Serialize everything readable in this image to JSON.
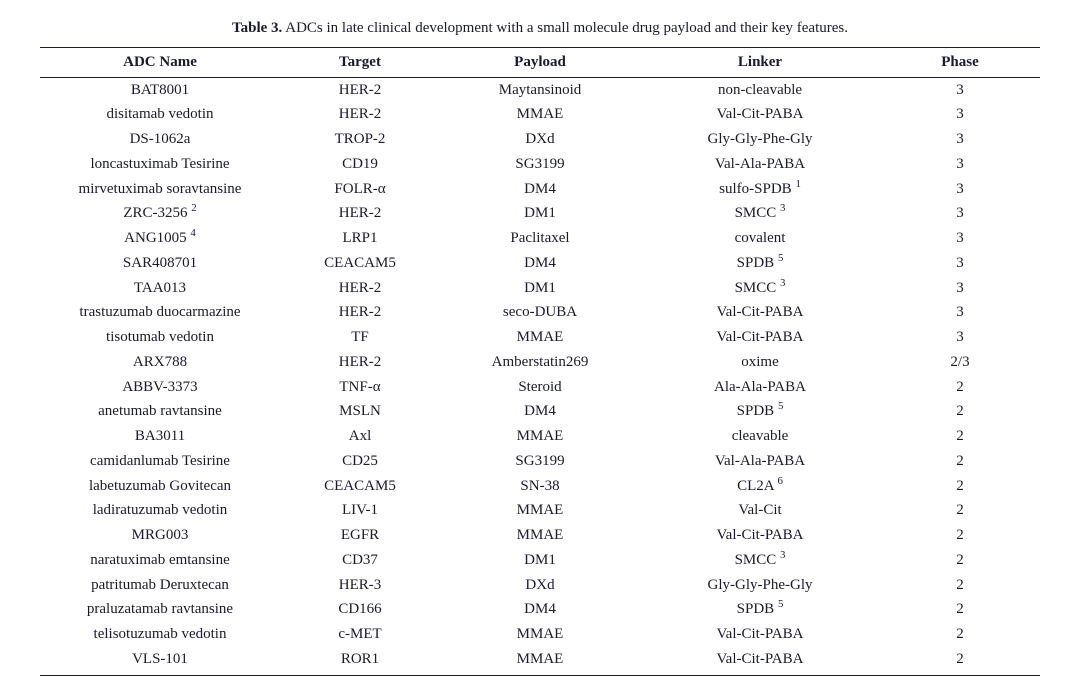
{
  "caption": {
    "lead": "Table 3.",
    "rest": " ADCs in late clinical development with a small molecule drug payload and their key features."
  },
  "columns": [
    "ADC Name",
    "Target",
    "Payload",
    "Linker",
    "Phase"
  ],
  "rows": [
    {
      "name": "BAT8001",
      "name_sup": "",
      "target": "HER-2",
      "payload": "Maytansinoid",
      "linker": "non-cleavable",
      "linker_sup": "",
      "phase": "3"
    },
    {
      "name": "disitamab vedotin",
      "name_sup": "",
      "target": "HER-2",
      "payload": "MMAE",
      "linker": "Val-Cit-PABA",
      "linker_sup": "",
      "phase": "3"
    },
    {
      "name": "DS-1062a",
      "name_sup": "",
      "target": "TROP-2",
      "payload": "DXd",
      "linker": "Gly-Gly-Phe-Gly",
      "linker_sup": "",
      "phase": "3"
    },
    {
      "name": "loncastuximab Tesirine",
      "name_sup": "",
      "target": "CD19",
      "payload": "SG3199",
      "linker": "Val-Ala-PABA",
      "linker_sup": "",
      "phase": "3"
    },
    {
      "name": "mirvetuximab soravtansine",
      "name_sup": "",
      "target": "FOLR-α",
      "payload": "DM4",
      "linker": "sulfo-SPDB ",
      "linker_sup": "1",
      "phase": "3"
    },
    {
      "name": "ZRC-3256 ",
      "name_sup": "2",
      "target": "HER-2",
      "payload": "DM1",
      "linker": "SMCC ",
      "linker_sup": "3",
      "phase": "3"
    },
    {
      "name": "ANG1005 ",
      "name_sup": "4",
      "target": "LRP1",
      "payload": "Paclitaxel",
      "linker": "covalent",
      "linker_sup": "",
      "phase": "3"
    },
    {
      "name": "SAR408701",
      "name_sup": "",
      "target": "CEACAM5",
      "payload": "DM4",
      "linker": "SPDB ",
      "linker_sup": "5",
      "phase": "3"
    },
    {
      "name": "TAA013",
      "name_sup": "",
      "target": "HER-2",
      "payload": "DM1",
      "linker": "SMCC ",
      "linker_sup": "3",
      "phase": "3"
    },
    {
      "name": "trastuzumab duocarmazine",
      "name_sup": "",
      "target": "HER-2",
      "payload": "seco-DUBA",
      "linker": "Val-Cit-PABA",
      "linker_sup": "",
      "phase": "3"
    },
    {
      "name": "tisotumab vedotin",
      "name_sup": "",
      "target": "TF",
      "payload": "MMAE",
      "linker": "Val-Cit-PABA",
      "linker_sup": "",
      "phase": "3"
    },
    {
      "name": "ARX788",
      "name_sup": "",
      "target": "HER-2",
      "payload": "Amberstatin269",
      "linker": "oxime",
      "linker_sup": "",
      "phase": "2/3"
    },
    {
      "name": "ABBV-3373",
      "name_sup": "",
      "target": "TNF-α",
      "payload": "Steroid",
      "linker": "Ala-Ala-PABA",
      "linker_sup": "",
      "phase": "2"
    },
    {
      "name": "anetumab ravtansine",
      "name_sup": "",
      "target": "MSLN",
      "payload": "DM4",
      "linker": "SPDB ",
      "linker_sup": "5",
      "phase": "2"
    },
    {
      "name": "BA3011",
      "name_sup": "",
      "target": "Axl",
      "payload": "MMAE",
      "linker": "cleavable",
      "linker_sup": "",
      "phase": "2"
    },
    {
      "name": "camidanlumab Tesirine",
      "name_sup": "",
      "target": "CD25",
      "payload": "SG3199",
      "linker": "Val-Ala-PABA",
      "linker_sup": "",
      "phase": "2"
    },
    {
      "name": "labetuzumab Govitecan",
      "name_sup": "",
      "target": "CEACAM5",
      "payload": "SN-38",
      "linker": "CL2A ",
      "linker_sup": "6",
      "phase": "2"
    },
    {
      "name": "ladiratuzumab vedotin",
      "name_sup": "",
      "target": "LIV-1",
      "payload": "MMAE",
      "linker": "Val-Cit",
      "linker_sup": "",
      "phase": "2"
    },
    {
      "name": "MRG003",
      "name_sup": "",
      "target": "EGFR",
      "payload": "MMAE",
      "linker": "Val-Cit-PABA",
      "linker_sup": "",
      "phase": "2"
    },
    {
      "name": "naratuximab emtansine",
      "name_sup": "",
      "target": "CD37",
      "payload": "DM1",
      "linker": "SMCC ",
      "linker_sup": "3",
      "phase": "2"
    },
    {
      "name": "patritumab Deruxtecan",
      "name_sup": "",
      "target": "HER-3",
      "payload": "DXd",
      "linker": "Gly-Gly-Phe-Gly",
      "linker_sup": "",
      "phase": "2"
    },
    {
      "name": "praluzatamab ravtansine",
      "name_sup": "",
      "target": "CD166",
      "payload": "DM4",
      "linker": "SPDB ",
      "linker_sup": "5",
      "phase": "2"
    },
    {
      "name": "telisotuzumab vedotin",
      "name_sup": "",
      "target": "c-MET",
      "payload": "MMAE",
      "linker": "Val-Cit-PABA",
      "linker_sup": "",
      "phase": "2"
    },
    {
      "name": "VLS-101",
      "name_sup": "",
      "target": "ROR1",
      "payload": "MMAE",
      "linker": "Val-Cit-PABA",
      "linker_sup": "",
      "phase": "2"
    }
  ],
  "style": {
    "font_family": "Palatino Linotype, Book Antiqua, Palatino, Georgia, serif",
    "text_color": "#1a1a2e",
    "background_color": "#ffffff",
    "border_color": "#1a1a2e",
    "font_size_pt": 11,
    "col_widths_pct": [
      24,
      16,
      20,
      24,
      16
    ]
  }
}
